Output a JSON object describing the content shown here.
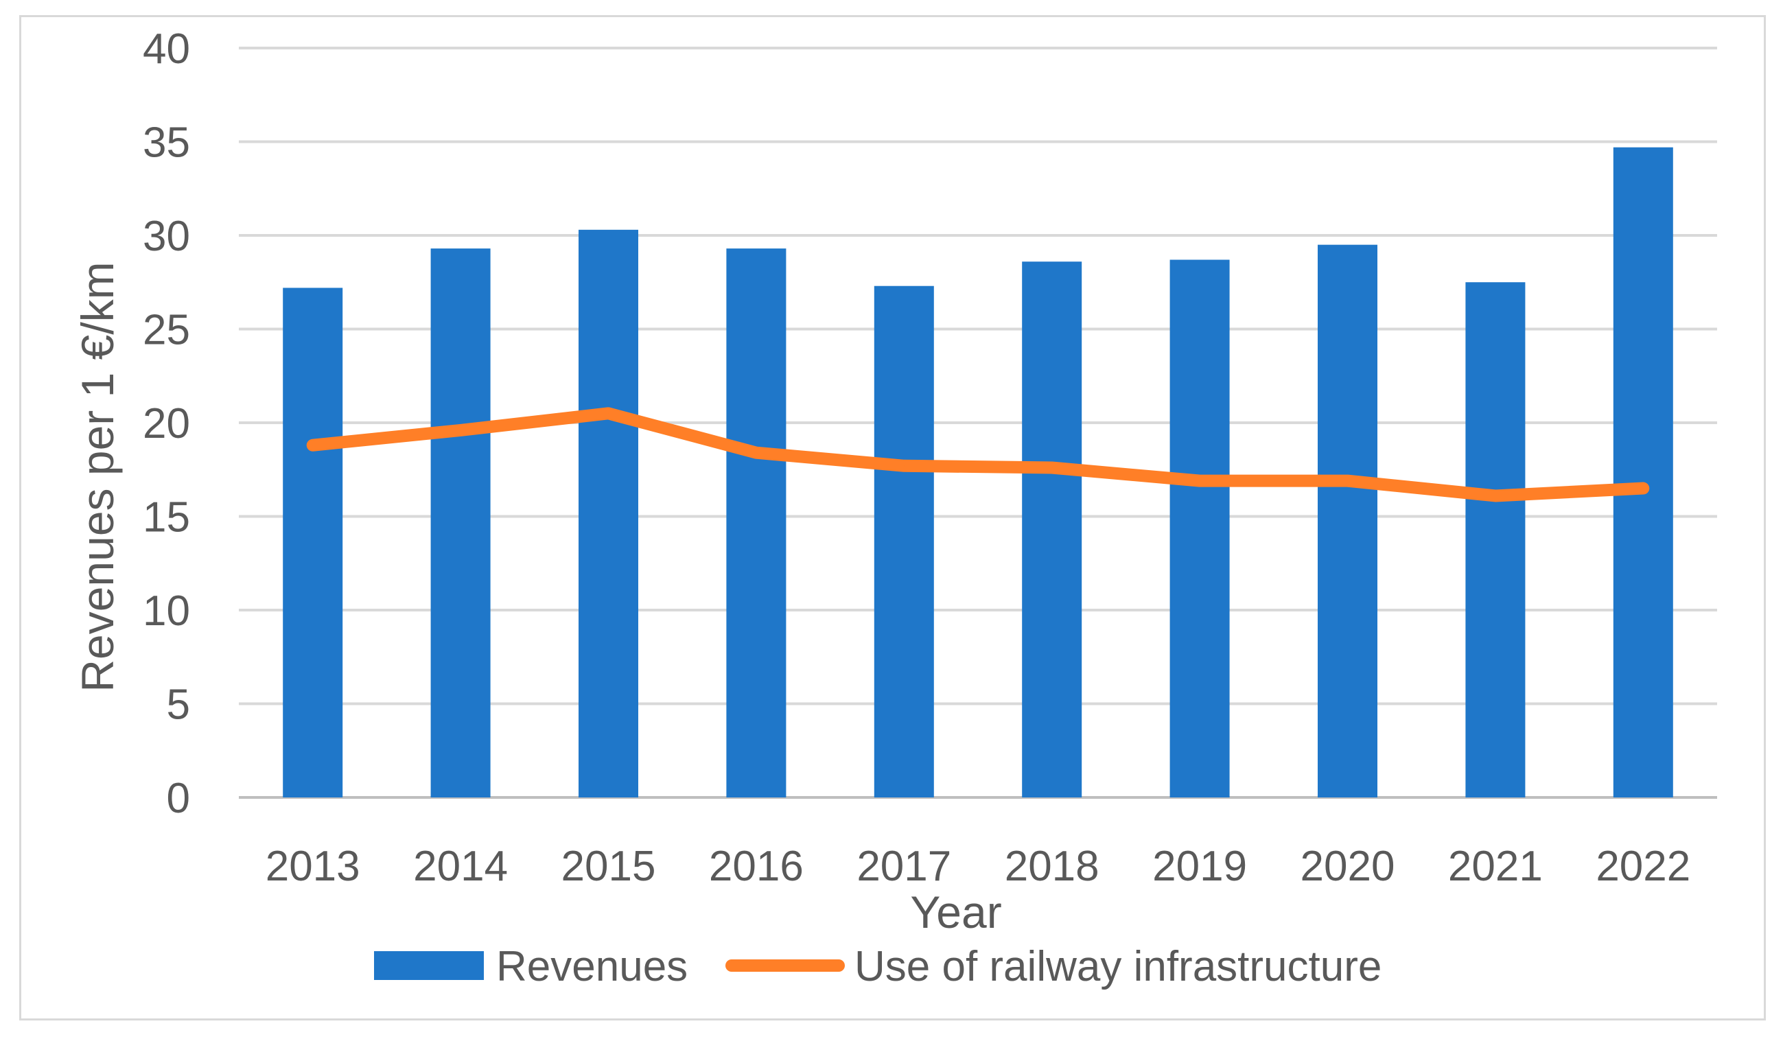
{
  "chart_data": {
    "type": "bar",
    "categories": [
      "2013",
      "2014",
      "2015",
      "2016",
      "2017",
      "2018",
      "2019",
      "2020",
      "2021",
      "2022"
    ],
    "series": [
      {
        "name": "Revenues",
        "kind": "bar",
        "color": "#1F77C9",
        "values": [
          27.2,
          29.3,
          30.3,
          29.3,
          27.3,
          28.6,
          28.7,
          29.5,
          27.5,
          34.7
        ]
      },
      {
        "name": "Use of railway infrastructure",
        "kind": "line",
        "color": "#FF7F27",
        "values": [
          18.8,
          19.6,
          20.5,
          18.4,
          17.7,
          17.6,
          16.9,
          16.9,
          16.1,
          16.5
        ]
      }
    ],
    "title": "",
    "xlabel": "Year",
    "ylabel": "Revenues per 1 €/km",
    "ylim": [
      0,
      40
    ],
    "yticks": [
      "0",
      "5",
      "10",
      "15",
      "20",
      "25",
      "30",
      "35",
      "40"
    ],
    "grid": true,
    "legend_position": "bottom"
  }
}
